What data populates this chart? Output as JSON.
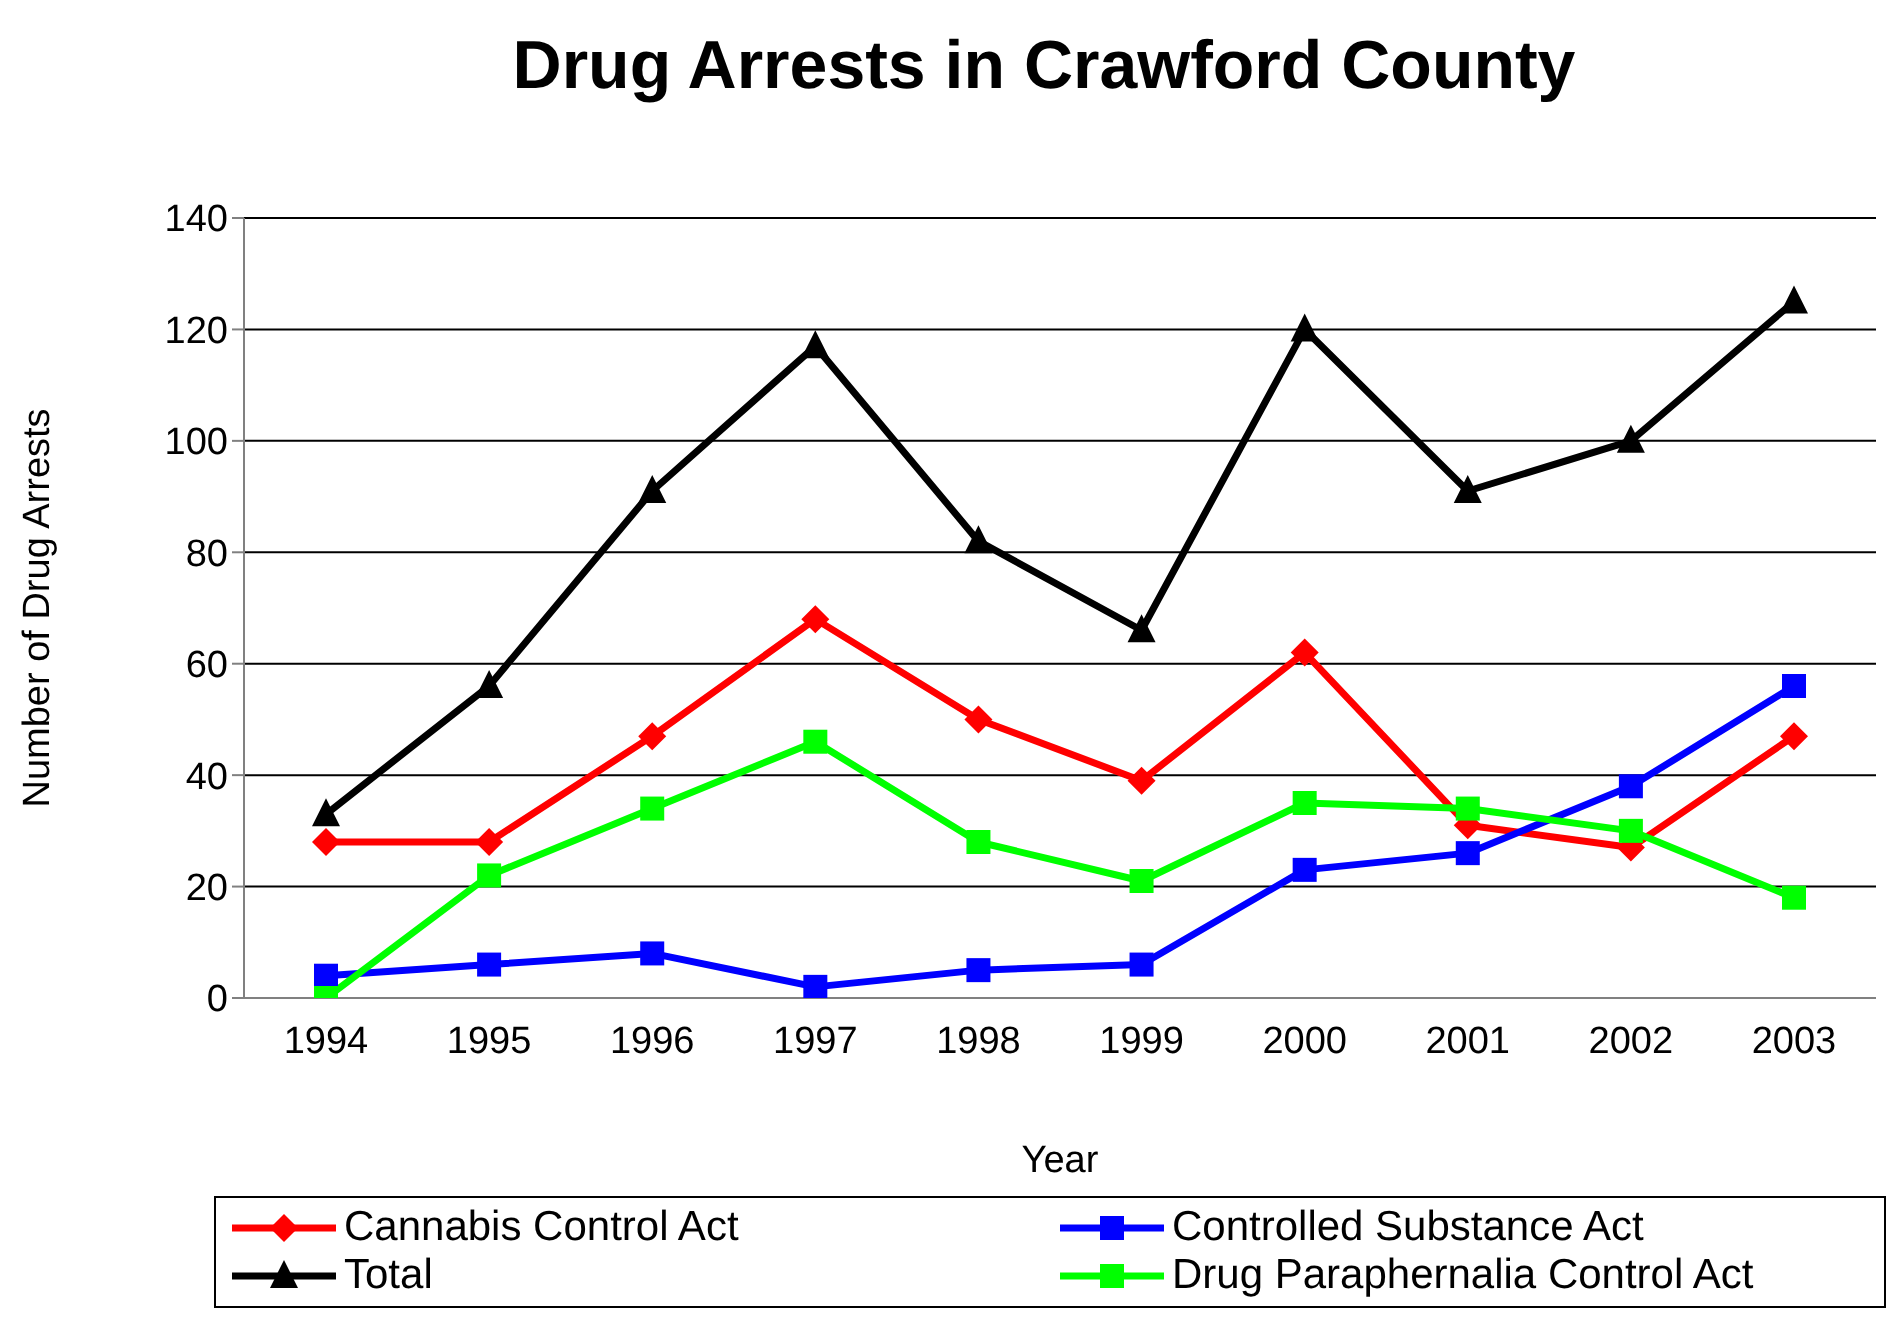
{
  "chart_data": {
    "type": "line",
    "title": "Drug Arrests in Crawford County",
    "xlabel": "Year",
    "ylabel": "Number of Drug Arrests",
    "categories": [
      "1994",
      "1995",
      "1996",
      "1997",
      "1998",
      "1999",
      "2000",
      "2001",
      "2002",
      "2003"
    ],
    "series": [
      {
        "name": "Cannabis Control Act",
        "color": "#ff0000",
        "marker": "diamond",
        "values": [
          28,
          28,
          47,
          68,
          50,
          39,
          62,
          31,
          27,
          47
        ]
      },
      {
        "name": "Controlled Substance Act",
        "color": "#0000ff",
        "marker": "square",
        "values": [
          4,
          6,
          8,
          2,
          5,
          6,
          23,
          26,
          38,
          56
        ]
      },
      {
        "name": "Total",
        "color": "#000000",
        "marker": "triangle",
        "values": [
          33,
          56,
          91,
          117,
          82,
          66,
          120,
          91,
          100,
          125
        ]
      },
      {
        "name": "Drug Paraphernalia Control Act",
        "color": "#00ff00",
        "marker": "square",
        "values": [
          0,
          22,
          34,
          46,
          28,
          21,
          35,
          34,
          30,
          18
        ]
      }
    ],
    "ylim": [
      0,
      140
    ],
    "yticks": [
      0,
      20,
      40,
      60,
      80,
      100,
      120,
      140
    ],
    "grid": "y",
    "legend": "bottom",
    "line_style": "solid"
  }
}
